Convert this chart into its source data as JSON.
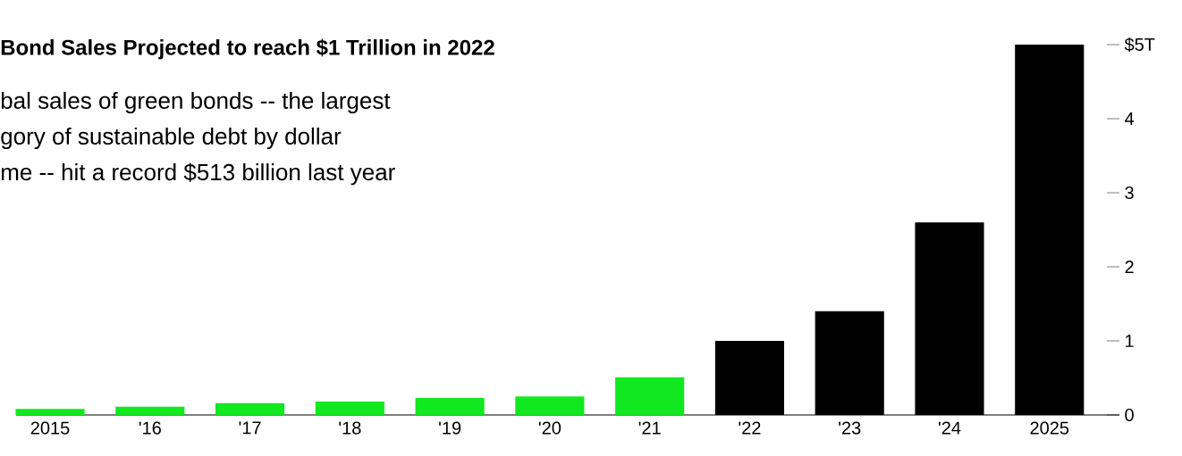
{
  "chart_data": {
    "type": "bar",
    "title": "Bond Sales Projected to reach $1 Trillion in 2022",
    "annotations": [
      "bal sales of green bonds -- the largest",
      "gory of sustainable debt by dollar",
      "me -- hit a record $513 billion last year"
    ],
    "categories": [
      "2015",
      "'16",
      "'17",
      "'18",
      "'19",
      "'20",
      "'21",
      "'22",
      "'23",
      "'24",
      "2025"
    ],
    "values": [
      0.08,
      0.11,
      0.16,
      0.18,
      0.23,
      0.25,
      0.51,
      1.0,
      1.4,
      2.6,
      5.0
    ],
    "colors": [
      "#12e81f",
      "#12e81f",
      "#12e81f",
      "#12e81f",
      "#12e81f",
      "#12e81f",
      "#12e81f",
      "#000000",
      "#000000",
      "#000000",
      "#000000"
    ],
    "ylim": [
      0,
      5
    ],
    "yticks": [
      0,
      1,
      2,
      3,
      4,
      {
        "value": 5,
        "label": "$5T"
      }
    ]
  }
}
